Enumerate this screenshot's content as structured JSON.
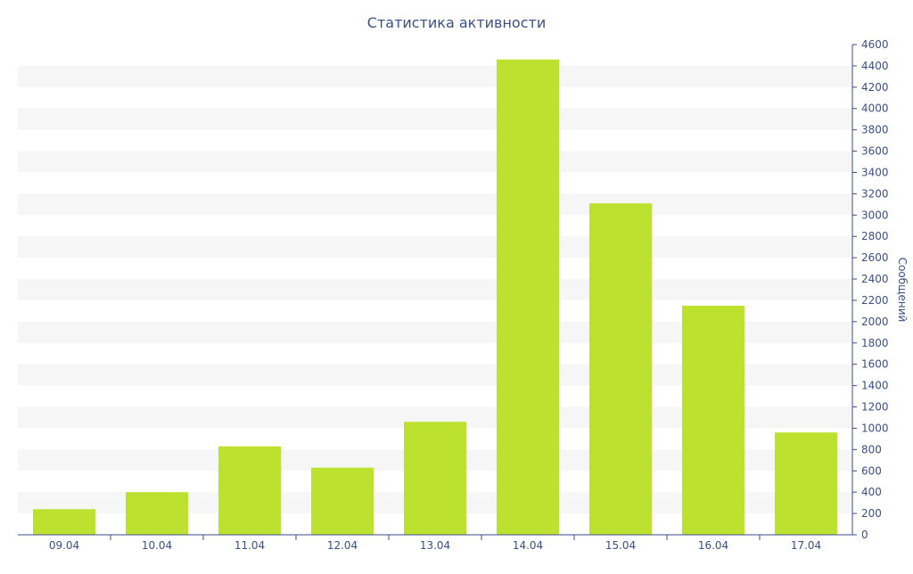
{
  "chart_data": {
    "type": "bar",
    "title": "Статистика активности",
    "xlabel": "",
    "ylabel": "Сообщений",
    "categories": [
      "09.04",
      "10.04",
      "11.04",
      "12.04",
      "13.04",
      "14.04",
      "15.04",
      "16.04",
      "17.04"
    ],
    "values": [
      240,
      400,
      830,
      630,
      1060,
      4460,
      3110,
      2150,
      960
    ],
    "ylim": [
      0,
      4600
    ],
    "ytick_step": 200,
    "y_axis_side": "right",
    "grid": "alternating horizontal bands",
    "legend": "none",
    "colors": {
      "bar": "#bce22f",
      "text": "#3b4f8a",
      "axis": "#3b4f8a",
      "band": "#f6f6f6"
    }
  }
}
